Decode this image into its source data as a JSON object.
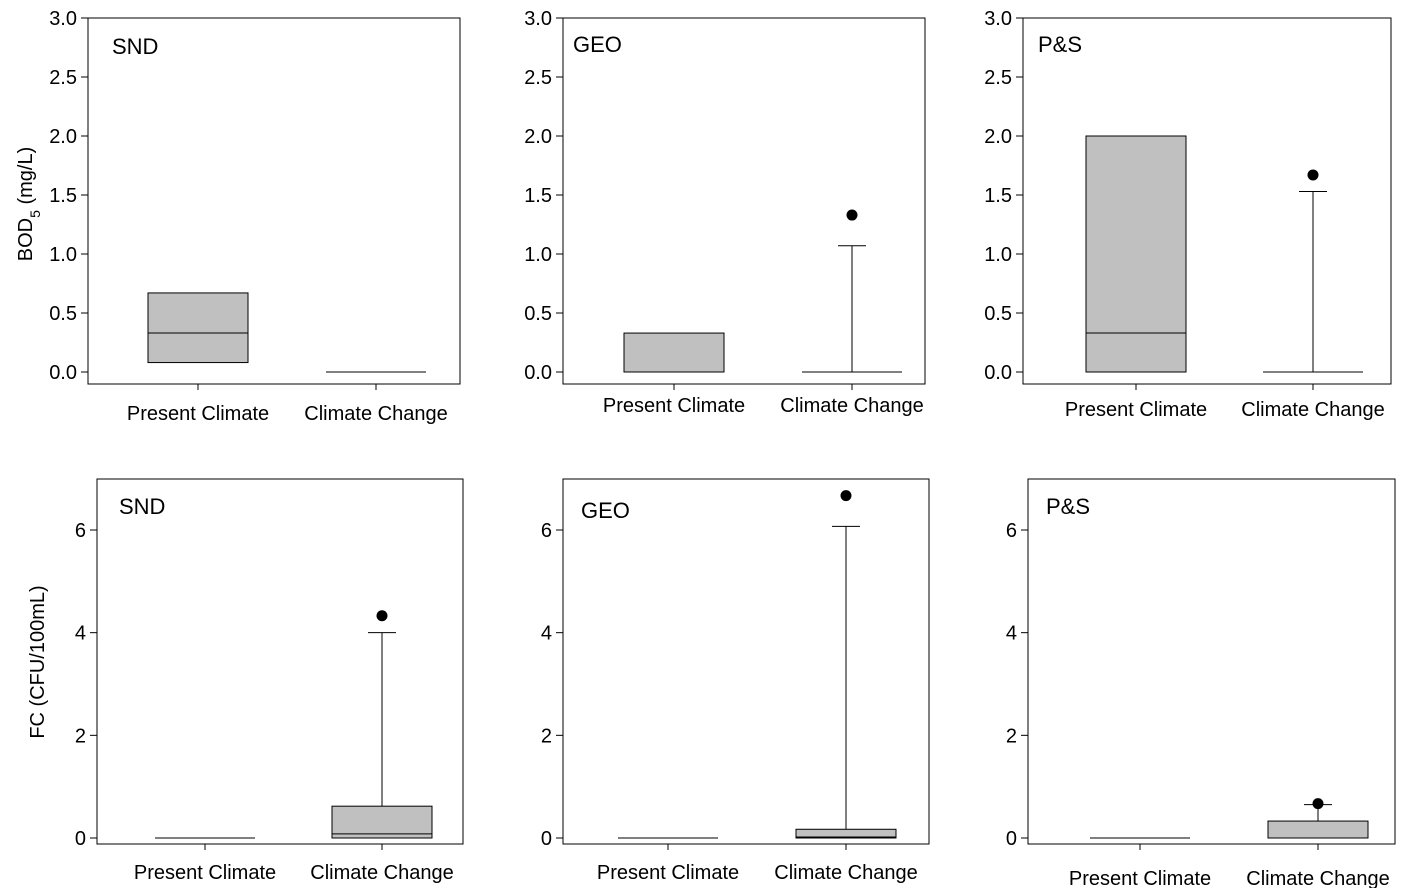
{
  "chart_data": [
    {
      "type": "box",
      "panel_label": "SND",
      "ylabel": "BOD",
      "ylabel_subscript": "5",
      "ylabel_suffix": " (mg/L)",
      "ylim": [
        0,
        3
      ],
      "yticks": [
        "0.0",
        "0.5",
        "1.0",
        "1.5",
        "2.0",
        "2.5",
        "3.0"
      ],
      "ytick_values": [
        0,
        0.5,
        1,
        1.5,
        2,
        2.5,
        3
      ],
      "categories": [
        "Present Climate",
        "Climate Change"
      ],
      "boxes": [
        {
          "q1": 0.08,
          "median": 0.33,
          "q3": 0.67,
          "whisker_low": null,
          "whisker_high": null,
          "outliers": []
        },
        {
          "q1": 0,
          "median": 0,
          "q3": 0,
          "whisker_low": null,
          "whisker_high": null,
          "outliers": []
        }
      ]
    },
    {
      "type": "box",
      "panel_label": "GEO",
      "ylim": [
        0,
        3
      ],
      "yticks": [
        "0.0",
        "0.5",
        "1.0",
        "1.5",
        "2.0",
        "2.5",
        "3.0"
      ],
      "ytick_values": [
        0,
        0.5,
        1,
        1.5,
        2,
        2.5,
        3
      ],
      "categories": [
        "Present Climate",
        "Climate Change"
      ],
      "boxes": [
        {
          "q1": 0,
          "median": 0,
          "q3": 0.33,
          "whisker_low": null,
          "whisker_high": null,
          "outliers": []
        },
        {
          "q1": 0,
          "median": 0,
          "q3": 0,
          "whisker_low": null,
          "whisker_high": 1.07,
          "outliers": [
            1.33
          ]
        }
      ]
    },
    {
      "type": "box",
      "panel_label": "P&S",
      "ylim": [
        0,
        3
      ],
      "yticks": [
        "0.0",
        "0.5",
        "1.0",
        "1.5",
        "2.0",
        "2.5",
        "3.0"
      ],
      "ytick_values": [
        0,
        0.5,
        1,
        1.5,
        2,
        2.5,
        3
      ],
      "categories": [
        "Present Climate",
        "Climate Change"
      ],
      "boxes": [
        {
          "q1": 0,
          "median": 0.33,
          "q3": 2.0,
          "whisker_low": null,
          "whisker_high": null,
          "outliers": []
        },
        {
          "q1": 0,
          "median": 0,
          "q3": 0,
          "whisker_low": null,
          "whisker_high": 1.53,
          "outliers": [
            1.67
          ]
        }
      ]
    },
    {
      "type": "box",
      "panel_label": "SND",
      "ylabel": "FC (CFU/100mL)",
      "ylim": [
        -0.2,
        7
      ],
      "yticks": [
        "0",
        "2",
        "4",
        "6"
      ],
      "ytick_values": [
        0,
        2,
        4,
        6
      ],
      "categories": [
        "Present Climate",
        "Climate Change"
      ],
      "boxes": [
        {
          "q1": 0,
          "median": 0,
          "q3": 0,
          "whisker_low": null,
          "whisker_high": null,
          "outliers": []
        },
        {
          "q1": 0,
          "median": 0.08,
          "q3": 0.62,
          "whisker_low": null,
          "whisker_high": 4.0,
          "outliers": [
            4.33
          ]
        }
      ]
    },
    {
      "type": "box",
      "panel_label": "GEO",
      "ylim": [
        -0.2,
        7
      ],
      "yticks": [
        "0",
        "2",
        "4",
        "6"
      ],
      "ytick_values": [
        0,
        2,
        4,
        6
      ],
      "categories": [
        "Present Climate",
        "Climate Change"
      ],
      "boxes": [
        {
          "q1": 0,
          "median": 0,
          "q3": 0,
          "whisker_low": null,
          "whisker_high": null,
          "outliers": []
        },
        {
          "q1": 0,
          "median": 0.02,
          "q3": 0.17,
          "whisker_low": null,
          "whisker_high": 6.07,
          "outliers": [
            6.67
          ]
        }
      ]
    },
    {
      "type": "box",
      "panel_label": "P&S",
      "ylim": [
        -0.2,
        7
      ],
      "yticks": [
        "0",
        "2",
        "4",
        "6"
      ],
      "ytick_values": [
        0,
        2,
        4,
        6
      ],
      "categories": [
        "Present Climate",
        "Climate Change"
      ],
      "boxes": [
        {
          "q1": 0,
          "median": 0,
          "q3": 0,
          "whisker_low": null,
          "whisker_high": null,
          "outliers": []
        },
        {
          "q1": 0,
          "median": 0,
          "q3": 0.33,
          "whisker_low": null,
          "whisker_high": 0.65,
          "outliers": [
            0.67
          ]
        }
      ]
    }
  ],
  "colors": {
    "box_fill": "#c0c0c0",
    "line": "#000000",
    "outlier": "#000000"
  }
}
